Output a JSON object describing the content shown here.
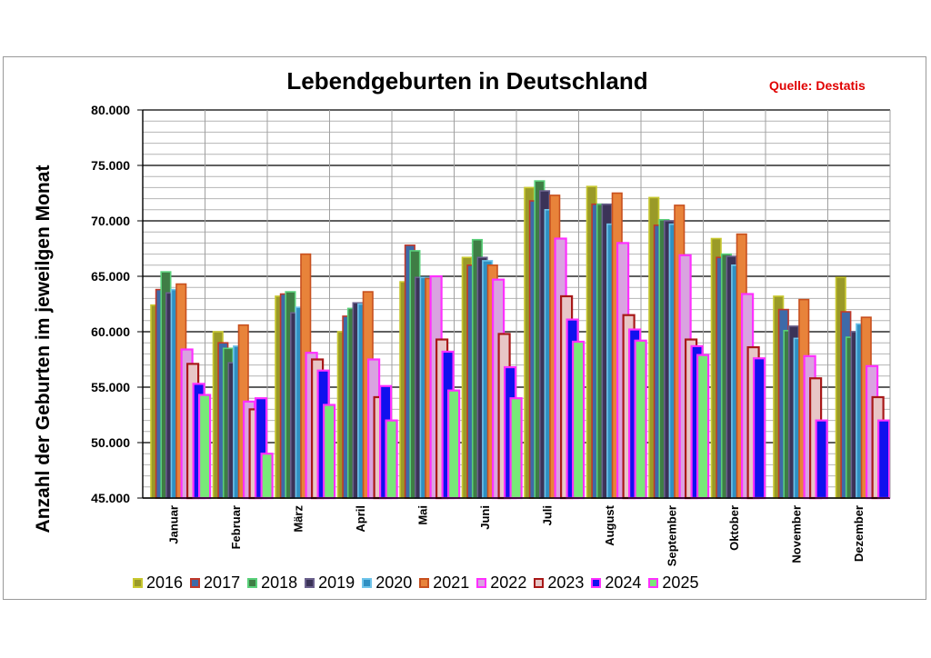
{
  "chart_data": {
    "type": "bar",
    "title": "Lebendgeburten in Deutschland",
    "source": "Quelle: Destatis",
    "ylabel": "Anzahl der Geburten im jeweilgen Monat",
    "xlabel": "",
    "ylim": [
      45000,
      80000
    ],
    "yticks": [
      "45.000",
      "50.000",
      "55.000",
      "60.000",
      "65.000",
      "70.000",
      "75.000",
      "80.000"
    ],
    "grid": true,
    "legend_position": "bottom",
    "categories": [
      "Januar",
      "Februar",
      "März",
      "April",
      "Mai",
      "Juni",
      "Juli",
      "August",
      "September",
      "Oktober",
      "November",
      "Dezember"
    ],
    "series": [
      {
        "name": "2016",
        "fill": "#9a9a28",
        "stroke": "#c8c830",
        "values": [
          62400,
          60000,
          63200,
          60000,
          64500,
          66700,
          73000,
          73100,
          72100,
          68400,
          63200,
          64900
        ]
      },
      {
        "name": "2017",
        "fill": "#3e6aa8",
        "stroke": "#c0392b",
        "values": [
          63800,
          59000,
          63400,
          61400,
          67800,
          66000,
          71800,
          71500,
          69600,
          66700,
          62000,
          61800
        ]
      },
      {
        "name": "2018",
        "fill": "#3f7d45",
        "stroke": "#5ad07a",
        "values": [
          65400,
          58500,
          63600,
          62100,
          67300,
          68300,
          73600,
          71500,
          70100,
          67000,
          60100,
          59500
        ]
      },
      {
        "name": "2019",
        "fill": "#3b3358",
        "stroke": "#6a608c",
        "values": [
          63500,
          57200,
          61700,
          62600,
          64900,
          66700,
          72700,
          71500,
          70000,
          66800,
          60500,
          60000
        ]
      },
      {
        "name": "2020",
        "fill": "#2f8fc2",
        "stroke": "#6fc4ea",
        "values": [
          63800,
          58700,
          62200,
          62500,
          64900,
          66400,
          71000,
          69700,
          69700,
          66000,
          59400,
          60700
        ]
      },
      {
        "name": "2021",
        "fill": "#e8833a",
        "stroke": "#c8501e",
        "values": [
          64300,
          60600,
          67000,
          63600,
          64800,
          66000,
          72300,
          72500,
          71400,
          68800,
          62900,
          61300
        ]
      },
      {
        "name": "2022",
        "fill": "#d9a3e0",
        "stroke": "#ff30ff",
        "values": [
          58400,
          53700,
          58100,
          57500,
          65000,
          64700,
          68400,
          68000,
          66900,
          63400,
          57800,
          56900
        ]
      },
      {
        "name": "2023",
        "fill": "#e8c6c6",
        "stroke": "#a81818",
        "values": [
          57100,
          53000,
          57500,
          54100,
          59300,
          59800,
          63200,
          61500,
          59300,
          58600,
          55800,
          54100
        ]
      },
      {
        "name": "2024",
        "fill": "#1010ee",
        "stroke": "#ff30ff",
        "values": [
          55300,
          54000,
          56500,
          55100,
          58200,
          56800,
          61100,
          60200,
          58700,
          57600,
          52000,
          52000
        ]
      },
      {
        "name": "2025",
        "fill": "#78e878",
        "stroke": "#ff30ff",
        "values": [
          54300,
          49000,
          53400,
          52000,
          54700,
          54000,
          59100,
          59200,
          57900,
          null,
          null,
          null
        ]
      }
    ]
  }
}
